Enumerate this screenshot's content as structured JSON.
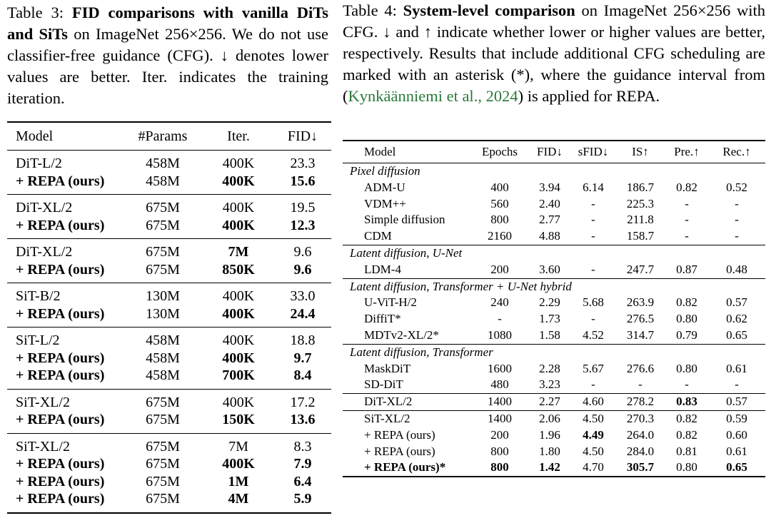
{
  "table3": {
    "caption": {
      "label": "Table 3:",
      "bold_text": "FID comparisons with vanilla DiTs and SiTs",
      "rest": " on ImageNet 256×256. We do not use classifier-free guidance (CFG). ↓ denotes lower values are better. Iter. indicates the training iteration."
    },
    "headers": [
      "Model",
      "#Params",
      "Iter.",
      "FID↓"
    ],
    "groups": [
      [
        {
          "model": "DiT-L/2",
          "params": "458M",
          "iter": "400K",
          "fid": "23.3",
          "bold_model": false,
          "bold_iter": false,
          "bold_fid": false
        },
        {
          "model": "+ REPA (ours)",
          "params": "458M",
          "iter": "400K",
          "fid": "15.6",
          "bold_model": true,
          "bold_iter": true,
          "bold_fid": true
        }
      ],
      [
        {
          "model": "DiT-XL/2",
          "params": "675M",
          "iter": "400K",
          "fid": "19.5",
          "bold_model": false,
          "bold_iter": false,
          "bold_fid": false
        },
        {
          "model": "+ REPA (ours)",
          "params": "675M",
          "iter": "400K",
          "fid": "12.3",
          "bold_model": true,
          "bold_iter": true,
          "bold_fid": true
        }
      ],
      [
        {
          "model": "DiT-XL/2",
          "params": "675M",
          "iter": "7M",
          "fid": "9.6",
          "bold_model": false,
          "bold_iter": true,
          "bold_fid": false
        },
        {
          "model": "+ REPA (ours)",
          "params": "675M",
          "iter": "850K",
          "fid": "9.6",
          "bold_model": true,
          "bold_iter": true,
          "bold_fid": true
        }
      ],
      [
        {
          "model": "SiT-B/2",
          "params": "130M",
          "iter": "400K",
          "fid": "33.0",
          "bold_model": false,
          "bold_iter": false,
          "bold_fid": false
        },
        {
          "model": "+ REPA (ours)",
          "params": "130M",
          "iter": "400K",
          "fid": "24.4",
          "bold_model": true,
          "bold_iter": true,
          "bold_fid": true
        }
      ],
      [
        {
          "model": "SiT-L/2",
          "params": "458M",
          "iter": "400K",
          "fid": "18.8",
          "bold_model": false,
          "bold_iter": false,
          "bold_fid": false
        },
        {
          "model": "+ REPA (ours)",
          "params": "458M",
          "iter": "400K",
          "fid": "9.7",
          "bold_model": true,
          "bold_iter": true,
          "bold_fid": true
        },
        {
          "model": "+ REPA (ours)",
          "params": "458M",
          "iter": "700K",
          "fid": "8.4",
          "bold_model": true,
          "bold_iter": true,
          "bold_fid": true
        }
      ],
      [
        {
          "model": "SiT-XL/2",
          "params": "675M",
          "iter": "400K",
          "fid": "17.2",
          "bold_model": false,
          "bold_iter": false,
          "bold_fid": false
        },
        {
          "model": "+ REPA (ours)",
          "params": "675M",
          "iter": "150K",
          "fid": "13.6",
          "bold_model": true,
          "bold_iter": true,
          "bold_fid": true
        }
      ],
      [
        {
          "model": "SiT-XL/2",
          "params": "675M",
          "iter": "7M",
          "fid": "8.3",
          "bold_model": false,
          "bold_iter": false,
          "bold_fid": false
        },
        {
          "model": "+ REPA (ours)",
          "params": "675M",
          "iter": "400K",
          "fid": "7.9",
          "bold_model": true,
          "bold_iter": true,
          "bold_fid": true
        },
        {
          "model": "+ REPA (ours)",
          "params": "675M",
          "iter": "1M",
          "fid": "6.4",
          "bold_model": true,
          "bold_iter": true,
          "bold_fid": true
        },
        {
          "model": "+ REPA (ours)",
          "params": "675M",
          "iter": "4M",
          "fid": "5.9",
          "bold_model": true,
          "bold_iter": true,
          "bold_fid": true
        }
      ]
    ]
  },
  "table4": {
    "caption": {
      "label": "Table 4:",
      "bold_text": "System-level comparison",
      "rest_before_cite": " on ImageNet 256×256 with CFG. ↓ and ↑ indicate whether lower or higher values are better, respectively. Results that include additional CFG scheduling are marked with an asterisk (*), where the guidance interval from (",
      "cite": "Kynkäänniemi et al., 2024",
      "rest_after_cite": ") is applied for REPA."
    },
    "headers": [
      "Model",
      "Epochs",
      "FID↓",
      "sFID↓",
      "IS↑",
      "Pre.↑",
      "Rec.↑"
    ],
    "sections": [
      {
        "title": "Pixel diffusion",
        "rows": [
          {
            "cells": [
              "ADM-U",
              "400",
              "3.94",
              "6.14",
              "186.7",
              "0.82",
              "0.52"
            ],
            "bold": []
          },
          {
            "cells": [
              "VDM++",
              "560",
              "2.40",
              "-",
              "225.3",
              "-",
              "-"
            ],
            "bold": []
          },
          {
            "cells": [
              "Simple diffusion",
              "800",
              "2.77",
              "-",
              "211.8",
              "-",
              "-"
            ],
            "bold": []
          },
          {
            "cells": [
              "CDM",
              "2160",
              "4.88",
              "-",
              "158.7",
              "-",
              "-"
            ],
            "bold": []
          }
        ]
      },
      {
        "title": "Latent diffusion, U-Net",
        "rows": [
          {
            "cells": [
              "LDM-4",
              "200",
              "3.60",
              "-",
              "247.7",
              "0.87",
              "0.48"
            ],
            "bold": []
          }
        ]
      },
      {
        "title": "Latent diffusion, Transformer + U-Net hybrid",
        "rows": [
          {
            "cells": [
              "U-ViT-H/2",
              "240",
              "2.29",
              "5.68",
              "263.9",
              "0.82",
              "0.57"
            ],
            "bold": []
          },
          {
            "cells": [
              "DiffiT*",
              "-",
              "1.73",
              "-",
              "276.5",
              "0.80",
              "0.62"
            ],
            "bold": []
          },
          {
            "cells": [
              "MDTv2-XL/2*",
              "1080",
              "1.58",
              "4.52",
              "314.7",
              "0.79",
              "0.65"
            ],
            "bold": []
          }
        ]
      },
      {
        "title": "Latent diffusion, Transformer",
        "rows": [
          {
            "cells": [
              "MaskDiT",
              "1600",
              "2.28",
              "5.67",
              "276.6",
              "0.80",
              "0.61"
            ],
            "bold": []
          },
          {
            "cells": [
              "SD-DiT",
              "480",
              "3.23",
              "-",
              "-",
              "-",
              "-"
            ],
            "bold": []
          },
          {
            "cells": [
              "DiT-XL/2",
              "1400",
              "2.27",
              "4.60",
              "278.2",
              "0.83",
              "0.57"
            ],
            "bold": [
              5
            ],
            "sub_start": true
          },
          {
            "cells": [
              "SiT-XL/2",
              "1400",
              "2.06",
              "4.50",
              "270.3",
              "0.82",
              "0.59"
            ],
            "bold": [],
            "sub_start": true
          },
          {
            "cells": [
              "+ REPA (ours)",
              "200",
              "1.96",
              "4.49",
              "264.0",
              "0.82",
              "0.60"
            ],
            "bold": [
              3
            ]
          },
          {
            "cells": [
              "+ REPA (ours)",
              "800",
              "1.80",
              "4.50",
              "284.0",
              "0.81",
              "0.61"
            ],
            "bold": []
          },
          {
            "cells": [
              "+ REPA (ours)*",
              "800",
              "1.42",
              "4.70",
              "305.7",
              "0.80",
              "0.65"
            ],
            "bold": [
              0,
              1,
              2,
              4,
              6
            ]
          }
        ]
      }
    ]
  }
}
